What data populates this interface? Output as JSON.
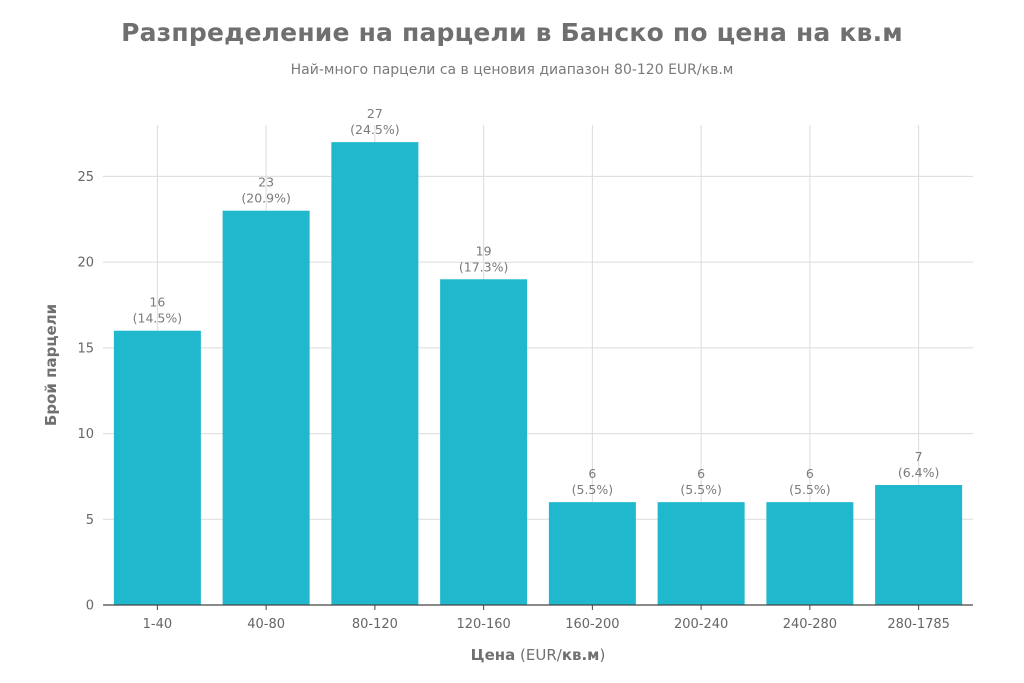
{
  "chart_data": {
    "type": "bar",
    "title": "Разпределение на парцели в Банско по цена на кв.м",
    "subtitle": "Най-много парцели са в ценовия диапазон 80-120 EUR/кв.м",
    "categories": [
      "1-40",
      "40-80",
      "80-120",
      "120-160",
      "160-200",
      "200-240",
      "240-280",
      "280-1785"
    ],
    "values": [
      16,
      23,
      27,
      19,
      6,
      6,
      6,
      7
    ],
    "percent_labels": [
      "(14.5%)",
      "(20.9%)",
      "(24.5%)",
      "(17.3%)",
      "(5.5%)",
      "(5.5%)",
      "(5.5%)",
      "(6.4%)"
    ],
    "xlabel_bold": "Цена",
    "xlabel_mid": " (EUR/",
    "xlabel_unit": "кв.м",
    "xlabel_end": ")",
    "ylabel": "Брой парцели",
    "ylim": [
      0,
      28
    ],
    "yticks": [
      0,
      5,
      10,
      15,
      20,
      25
    ],
    "grid": true,
    "bar_color": "#20b8cd",
    "grid_color": "#dcdcdc",
    "axis_color": "#444444"
  }
}
